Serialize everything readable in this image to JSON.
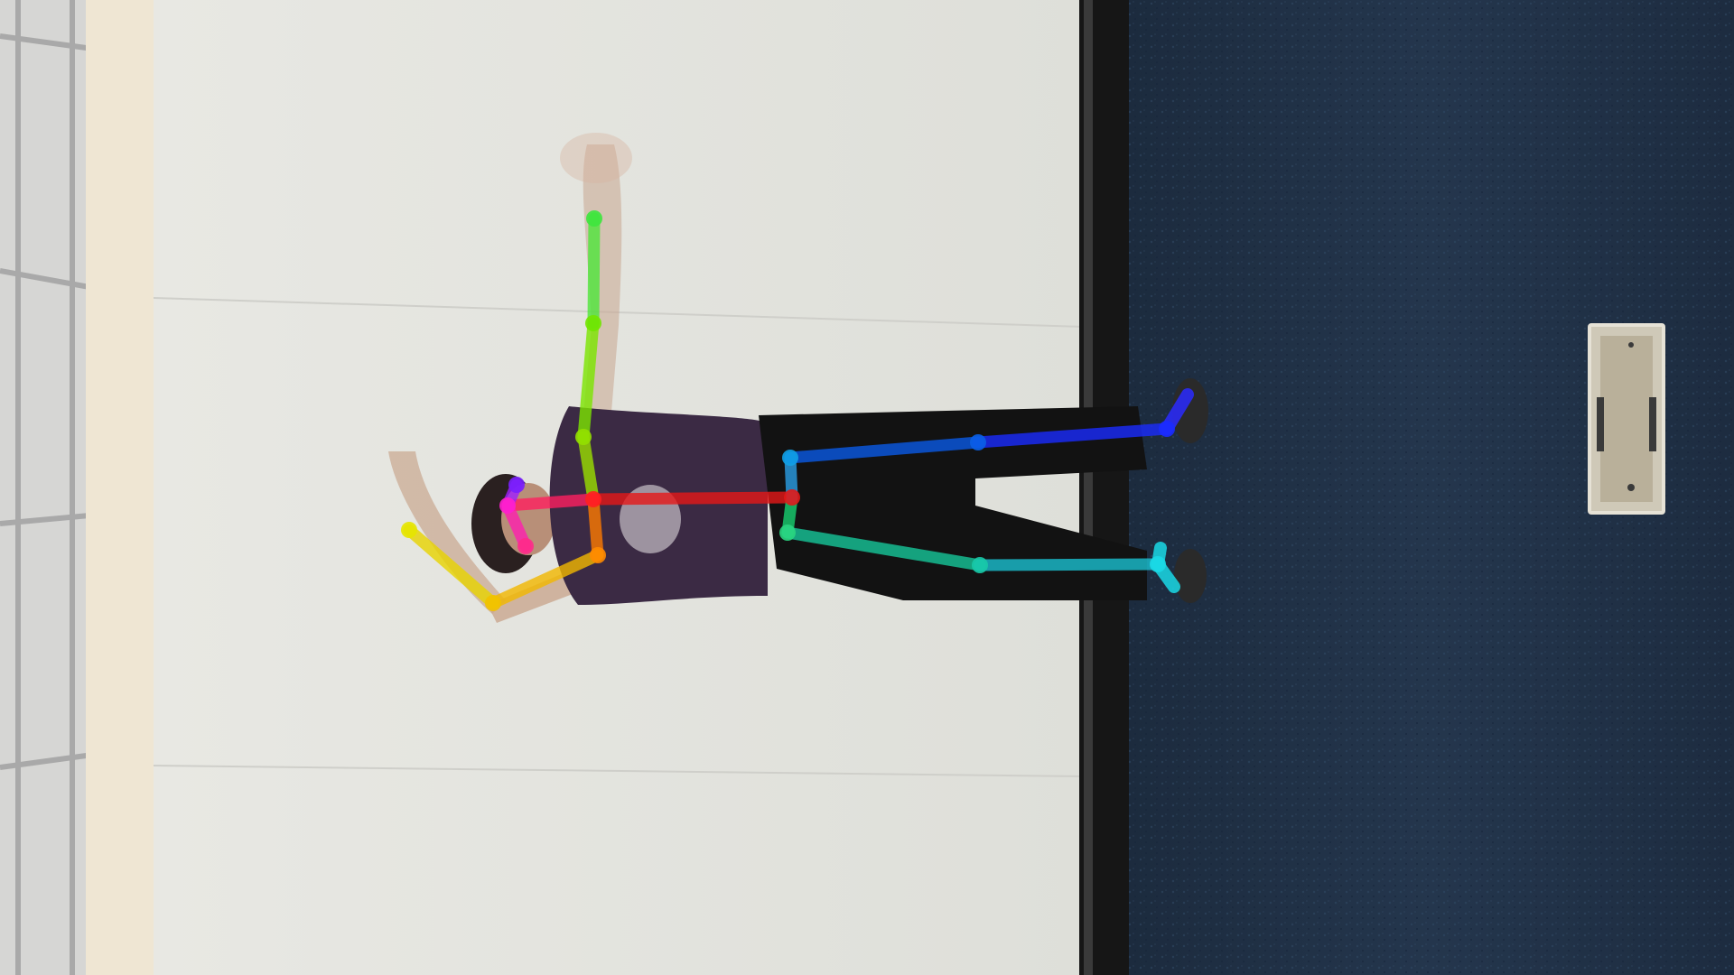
{
  "image": {
    "description_tags": [
      "pose-estimation-overlay",
      "person",
      "wall",
      "carpet",
      "floor-outlet"
    ]
  },
  "colors": {
    "carpet": "#1f3147",
    "wall": "#e4e4df",
    "baseboard": "#111111",
    "beige_panel": "#efe6d3",
    "window_frame": "#c7c7c7",
    "shirt": "#3b2a44",
    "pants": "#111111"
  },
  "pose": {
    "keypoints": [
      {
        "name": "head-top",
        "color": "#7a1fff"
      },
      {
        "name": "nose",
        "color": "#ff1fd0"
      },
      {
        "name": "chin",
        "color": "#ff2b8a"
      },
      {
        "name": "neck",
        "color": "#ff2020"
      },
      {
        "name": "right-shoulder",
        "color": "#ff8a00"
      },
      {
        "name": "right-elbow",
        "color": "#f2c200"
      },
      {
        "name": "right-wrist",
        "color": "#e6e600"
      },
      {
        "name": "left-shoulder",
        "color": "#94e000"
      },
      {
        "name": "left-elbow",
        "color": "#72e600"
      },
      {
        "name": "left-wrist",
        "color": "#3ee63e"
      },
      {
        "name": "right-hip",
        "color": "#2ad680"
      },
      {
        "name": "right-knee",
        "color": "#18c9a8"
      },
      {
        "name": "right-ankle",
        "color": "#1ad9e6"
      },
      {
        "name": "left-hip",
        "color": "#10a0e6"
      },
      {
        "name": "left-knee",
        "color": "#0a60e6"
      },
      {
        "name": "left-ankle",
        "color": "#1a2bff"
      },
      {
        "name": "pelvis",
        "color": "#e01818"
      }
    ]
  }
}
